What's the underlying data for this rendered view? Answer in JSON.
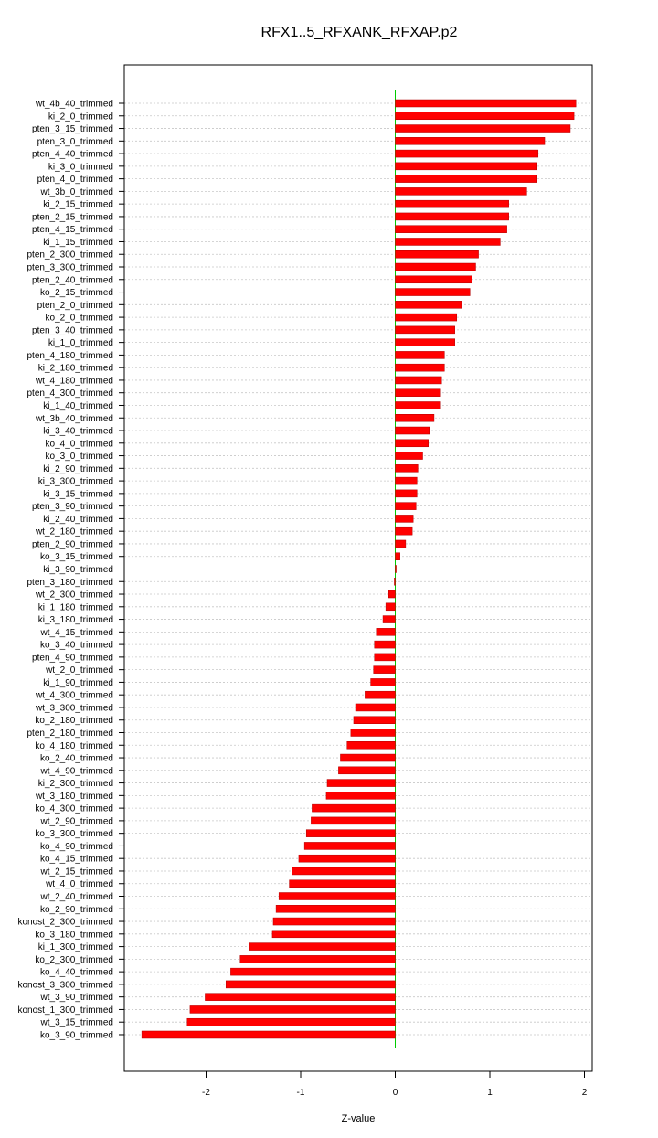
{
  "chart_data": {
    "type": "bar",
    "orientation": "horizontal",
    "title": "RFX1..5_RFXANK_RFXAP.p2",
    "xlabel": "Z-value",
    "ylabel": "",
    "xlim": [
      -2.85,
      2.07
    ],
    "xticks": [
      -2,
      -1,
      0,
      1,
      2
    ],
    "grid": true,
    "legend": "none",
    "bar_color": "#ff0000",
    "zero_line_color": "#00cc00",
    "categories": [
      "wt_4b_40_trimmed",
      "ki_2_0_trimmed",
      "pten_3_15_trimmed",
      "pten_3_0_trimmed",
      "pten_4_40_trimmed",
      "ki_3_0_trimmed",
      "pten_4_0_trimmed",
      "wt_3b_0_trimmed",
      "ki_2_15_trimmed",
      "pten_2_15_trimmed",
      "pten_4_15_trimmed",
      "ki_1_15_trimmed",
      "pten_2_300_trimmed",
      "pten_3_300_trimmed",
      "pten_2_40_trimmed",
      "ko_2_15_trimmed",
      "pten_2_0_trimmed",
      "ko_2_0_trimmed",
      "pten_3_40_trimmed",
      "ki_1_0_trimmed",
      "pten_4_180_trimmed",
      "ki_2_180_trimmed",
      "wt_4_180_trimmed",
      "pten_4_300_trimmed",
      "ki_1_40_trimmed",
      "wt_3b_40_trimmed",
      "ki_3_40_trimmed",
      "ko_4_0_trimmed",
      "ko_3_0_trimmed",
      "ki_2_90_trimmed",
      "ki_3_300_trimmed",
      "ki_3_15_trimmed",
      "pten_3_90_trimmed",
      "ki_2_40_trimmed",
      "wt_2_180_trimmed",
      "pten_2_90_trimmed",
      "ko_3_15_trimmed",
      "ki_3_90_trimmed",
      "pten_3_180_trimmed",
      "wt_2_300_trimmed",
      "ki_1_180_trimmed",
      "ki_3_180_trimmed",
      "wt_4_15_trimmed",
      "ko_3_40_trimmed",
      "pten_4_90_trimmed",
      "wt_2_0_trimmed",
      "ki_1_90_trimmed",
      "wt_4_300_trimmed",
      "wt_3_300_trimmed",
      "ko_2_180_trimmed",
      "pten_2_180_trimmed",
      "ko_4_180_trimmed",
      "ko_2_40_trimmed",
      "wt_4_90_trimmed",
      "ki_2_300_trimmed",
      "wt_3_180_trimmed",
      "ko_4_300_trimmed",
      "wt_2_90_trimmed",
      "ko_3_300_trimmed",
      "ko_4_90_trimmed",
      "ko_4_15_trimmed",
      "wt_2_15_trimmed",
      "wt_4_0_trimmed",
      "wt_2_40_trimmed",
      "ko_2_90_trimmed",
      "konost_2_300_trimmed",
      "ko_3_180_trimmed",
      "ki_1_300_trimmed",
      "ko_2_300_trimmed",
      "ko_4_40_trimmed",
      "konost_3_300_trimmed",
      "wt_3_90_trimmed",
      "konost_1_300_trimmed",
      "wt_3_15_trimmed",
      "ko_3_90_trimmed"
    ],
    "values": [
      1.91,
      1.89,
      1.85,
      1.58,
      1.51,
      1.5,
      1.5,
      1.39,
      1.2,
      1.2,
      1.18,
      1.11,
      0.88,
      0.85,
      0.81,
      0.79,
      0.7,
      0.65,
      0.63,
      0.63,
      0.52,
      0.52,
      0.49,
      0.48,
      0.48,
      0.41,
      0.36,
      0.35,
      0.29,
      0.24,
      0.23,
      0.23,
      0.22,
      0.19,
      0.18,
      0.11,
      0.05,
      0.01,
      -0.01,
      -0.07,
      -0.1,
      -0.13,
      -0.2,
      -0.22,
      -0.22,
      -0.23,
      -0.26,
      -0.32,
      -0.42,
      -0.44,
      -0.47,
      -0.51,
      -0.58,
      -0.6,
      -0.72,
      -0.73,
      -0.88,
      -0.89,
      -0.94,
      -0.96,
      -1.02,
      -1.09,
      -1.12,
      -1.23,
      -1.26,
      -1.29,
      -1.3,
      -1.54,
      -1.64,
      -1.74,
      -1.79,
      -2.01,
      -2.17,
      -2.2,
      -2.68
    ]
  }
}
